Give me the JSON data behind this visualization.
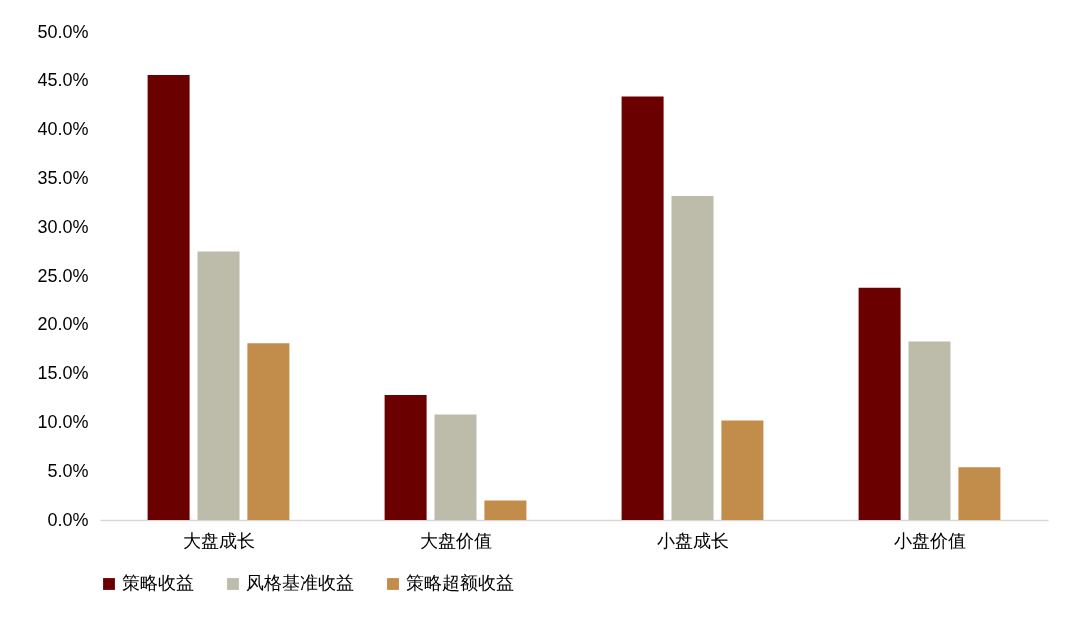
{
  "chart_data": {
    "type": "bar",
    "categories": [
      "大盘成长",
      "大盘价值",
      "小盘成长",
      "小盘价值"
    ],
    "series": [
      {
        "name": "策略收益",
        "color": "#6b0000",
        "values": [
          45.6,
          12.8,
          43.4,
          23.8
        ]
      },
      {
        "name": "风格基准收益",
        "color": "#bdbcab",
        "values": [
          27.5,
          10.8,
          33.2,
          18.3
        ]
      },
      {
        "name": "策略超额收益",
        "color": "#c28d4a",
        "values": [
          18.1,
          2.0,
          10.2,
          5.4
        ]
      }
    ],
    "ylim": [
      0,
      50
    ],
    "yticks": [
      {
        "value": 0,
        "label": "0.0%"
      },
      {
        "value": 5,
        "label": "5.0%"
      },
      {
        "value": 10,
        "label": "10.0%"
      },
      {
        "value": 15,
        "label": "15.0%"
      },
      {
        "value": 20,
        "label": "20.0%"
      },
      {
        "value": 25,
        "label": "25.0%"
      },
      {
        "value": 30,
        "label": "30.0%"
      },
      {
        "value": 35,
        "label": "35.0%"
      },
      {
        "value": 40,
        "label": "40.0%"
      },
      {
        "value": 45,
        "label": "45.0%"
      },
      {
        "value": 50,
        "label": "50.0%"
      }
    ],
    "grid": false,
    "legend": "bottom"
  }
}
